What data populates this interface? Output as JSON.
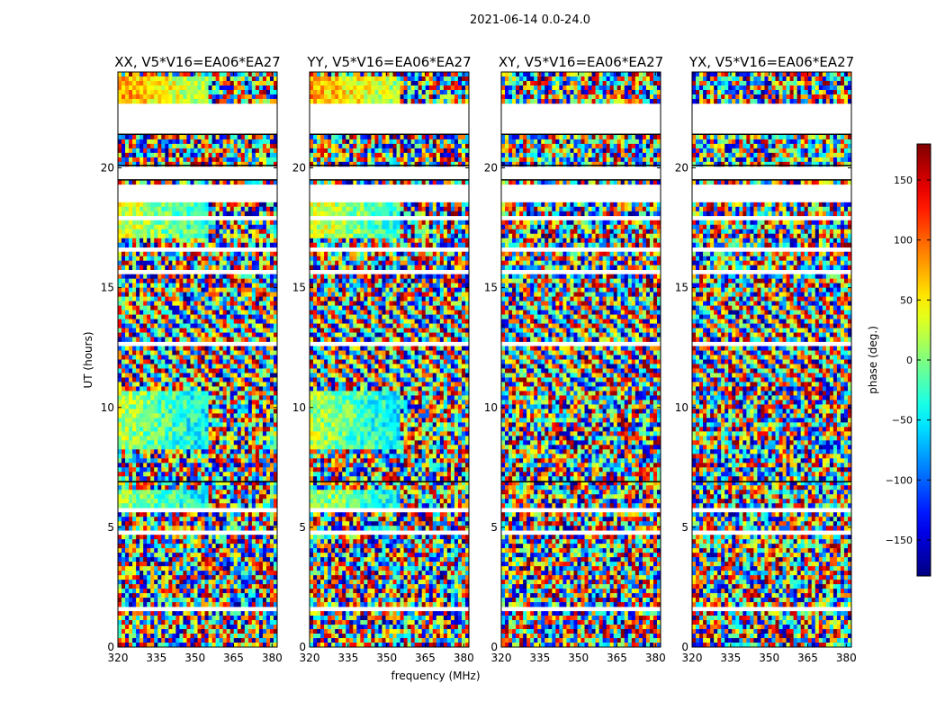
{
  "figure": {
    "suptitle": "2021-06-14 0.0-24.0",
    "xlabel": "frequency (MHz)",
    "ylabel": "UT (hours)"
  },
  "colorbar": {
    "label": "phase (deg.)",
    "range": [
      -180,
      180
    ],
    "ticks": [
      150,
      100,
      50,
      0,
      -50,
      -100,
      -150
    ],
    "tick_labels": [
      "150",
      "100",
      "50",
      "0",
      "−50",
      "−100",
      "−150"
    ],
    "colormap": "jet"
  },
  "chart_data": [
    {
      "type": "heatmap",
      "title": "XX, V5*V16=EA06*EA27",
      "x_range": [
        320,
        382
      ],
      "y_range": [
        0,
        24
      ],
      "x_ticks": [
        320,
        335,
        350,
        365,
        380
      ],
      "y_ticks": [
        0,
        5,
        10,
        15,
        20
      ],
      "value_range": [
        -180,
        180
      ]
    },
    {
      "type": "heatmap",
      "title": "YY, V5*V16=EA06*EA27",
      "x_range": [
        320,
        382
      ],
      "y_range": [
        0,
        24
      ],
      "x_ticks": [
        320,
        335,
        350,
        365,
        380
      ],
      "y_ticks": [
        0,
        5,
        10,
        15,
        20
      ],
      "value_range": [
        -180,
        180
      ]
    },
    {
      "type": "heatmap",
      "title": "XY, V5*V16=EA06*EA27",
      "x_range": [
        320,
        382
      ],
      "y_range": [
        0,
        24
      ],
      "x_ticks": [
        320,
        335,
        350,
        365,
        380
      ],
      "y_ticks": [
        0,
        5,
        10,
        15,
        20
      ],
      "value_range": [
        -180,
        180
      ]
    },
    {
      "type": "heatmap",
      "title": "YX, V5*V16=EA06*EA27",
      "x_range": [
        320,
        382
      ],
      "y_range": [
        0,
        24
      ],
      "x_ticks": [
        320,
        335,
        350,
        365,
        380
      ],
      "y_ticks": [
        0,
        5,
        10,
        15,
        20
      ],
      "value_range": [
        -180,
        180
      ]
    }
  ],
  "flagged_gaps_ut": [
    [
      21.4,
      22.6
    ],
    [
      19.5,
      20.1
    ],
    [
      18.6,
      19.3
    ],
    [
      15.5,
      15.75
    ],
    [
      12.6,
      12.75
    ],
    [
      6.85,
      6.95
    ],
    [
      5.65,
      5.72
    ],
    [
      4.75,
      4.82
    ],
    [
      3.55,
      3.62
    ],
    [
      2.95,
      3.02
    ],
    [
      1.55,
      1.62
    ],
    [
      23.0,
      23.1
    ],
    [
      17.9,
      18.0
    ],
    [
      16.55,
      16.62
    ],
    [
      7.6,
      7.68
    ]
  ]
}
